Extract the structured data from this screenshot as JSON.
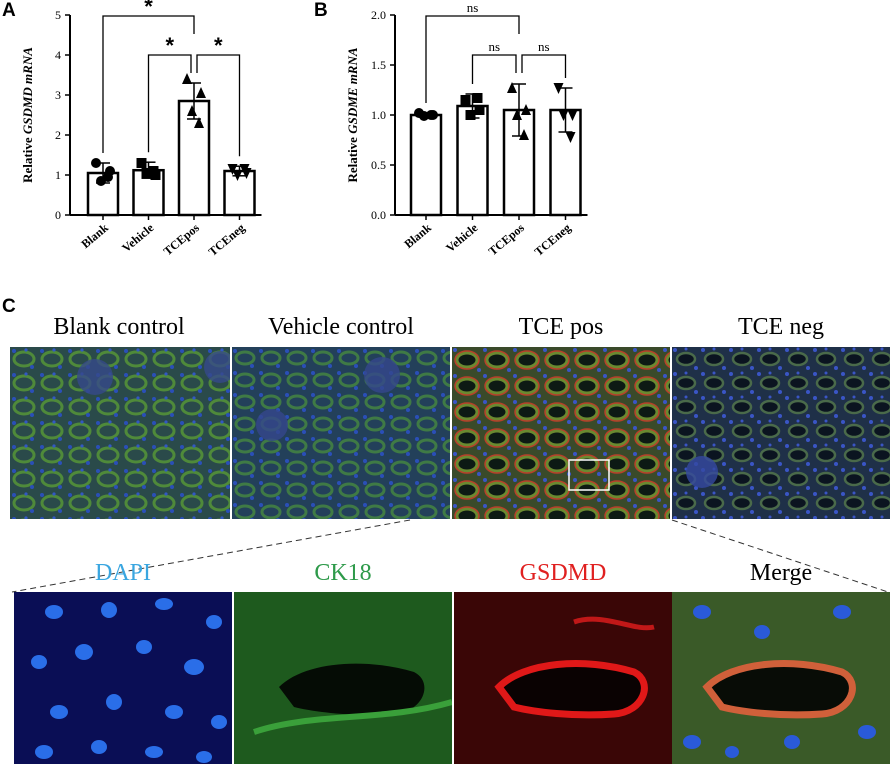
{
  "panels": {
    "a": "A",
    "b": "B",
    "c": "C"
  },
  "chart_data": [
    {
      "type": "bar",
      "ylabel_prefix": "Relative ",
      "ylabel_gene": "GSDMD mRNA",
      "categories": [
        "Blank",
        "Vehicle",
        "TCEpos",
        "TCEneg"
      ],
      "values": [
        1.05,
        1.12,
        2.85,
        1.1
      ],
      "sd": [
        0.25,
        0.2,
        0.45,
        0.12
      ],
      "points": [
        [
          1.3,
          1.1,
          0.85,
          0.95
        ],
        [
          1.3,
          1.0,
          1.05,
          1.1
        ],
        [
          3.4,
          3.05,
          2.6,
          2.3
        ],
        [
          1.15,
          1.05,
          1.0,
          1.15
        ]
      ],
      "markers": [
        "circle",
        "square",
        "triangle",
        "triangle-down"
      ],
      "ylim": [
        0,
        5
      ],
      "yticks": [
        "0",
        "1",
        "2",
        "3",
        "4",
        "5"
      ],
      "significance": [
        {
          "from": 0,
          "to": 2,
          "text": "*"
        },
        {
          "from": 1,
          "to": 2,
          "text": "*"
        },
        {
          "from": 2,
          "to": 3,
          "text": "*"
        }
      ]
    },
    {
      "type": "bar",
      "ylabel_prefix": "Relative ",
      "ylabel_gene": "GSDME mRNA",
      "categories": [
        "Blank",
        "Vehicle",
        "TCEpos",
        "TCEneg"
      ],
      "values": [
        1.0,
        1.09,
        1.05,
        1.05
      ],
      "sd": [
        0.02,
        0.12,
        0.26,
        0.22
      ],
      "points": [
        [
          1.02,
          1.0,
          0.99,
          1.0
        ],
        [
          1.15,
          1.05,
          1.0,
          1.17
        ],
        [
          1.27,
          1.05,
          1.0,
          0.8
        ],
        [
          1.27,
          1.0,
          1.0,
          0.78
        ]
      ],
      "markers": [
        "circle",
        "square",
        "triangle",
        "triangle-down"
      ],
      "ylim": [
        0,
        2
      ],
      "yticks": [
        "0.0",
        "0.5",
        "1.0",
        "1.5",
        "2.0"
      ],
      "significance": [
        {
          "from": 0,
          "to": 2,
          "text": "ns"
        },
        {
          "from": 1,
          "to": 2,
          "text": "ns"
        },
        {
          "from": 2,
          "to": 3,
          "text": "ns"
        }
      ]
    }
  ],
  "micrographs": {
    "top_labels": [
      "Blank control",
      "Vehicle control",
      "TCE pos",
      "TCE neg"
    ],
    "bottom_labels": [
      "DAPI",
      "CK18",
      "GSDMD",
      "Merge"
    ],
    "bottom_label_colors": [
      "#3aa6e0",
      "#2e9a4a",
      "#e02020",
      "#000000"
    ]
  }
}
